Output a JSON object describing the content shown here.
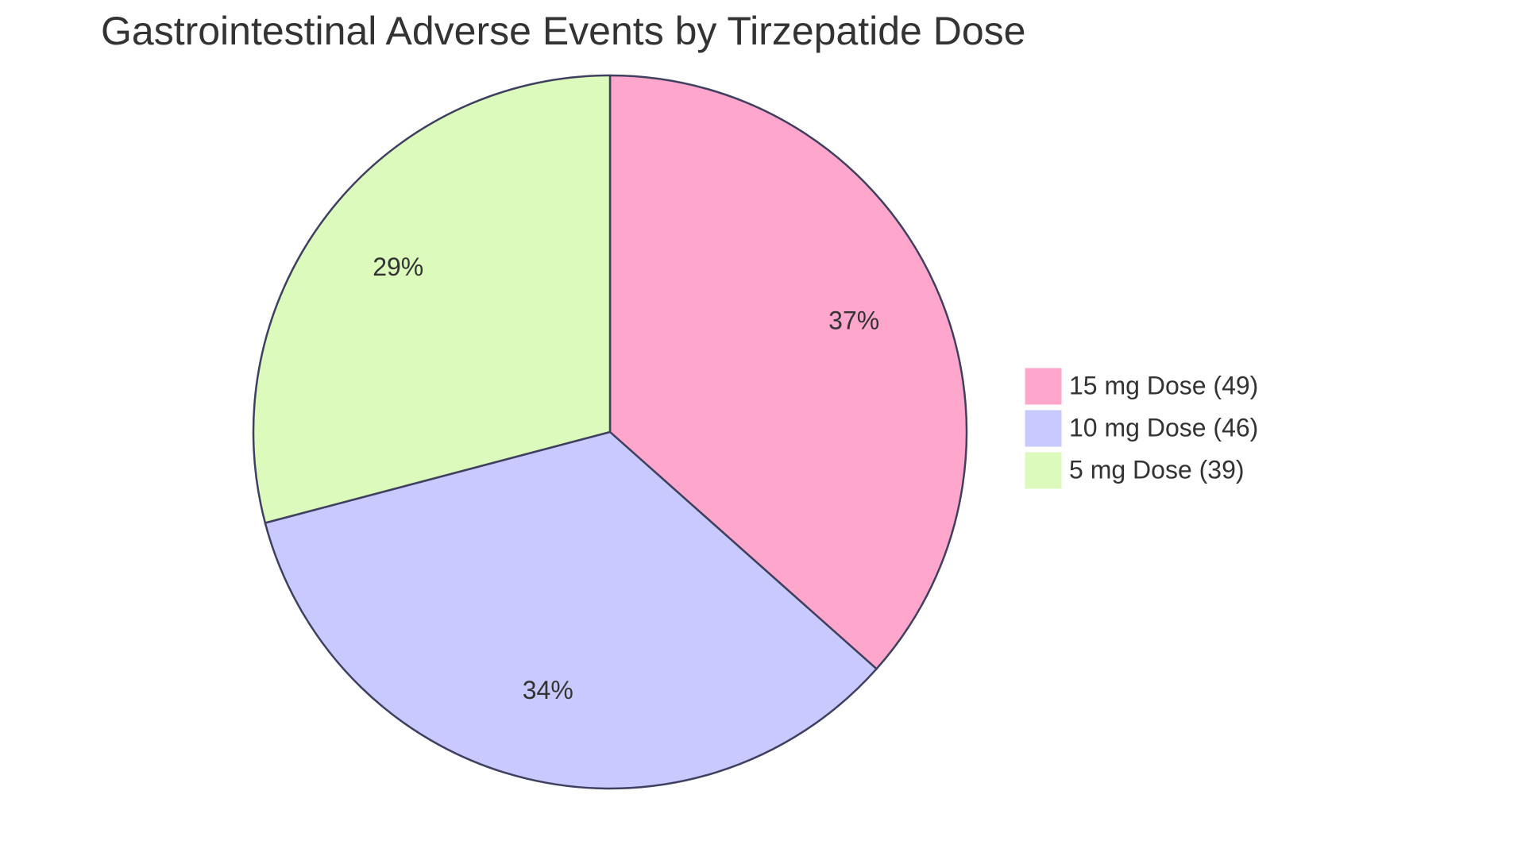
{
  "chart_data": {
    "type": "pie",
    "title": "Gastrointestinal Adverse Events by Tirzepatide Dose",
    "categories": [
      "15 mg Dose (49)",
      "10 mg Dose (46)",
      "5 mg Dose (39)"
    ],
    "values": [
      49,
      46,
      39
    ],
    "value_labels": [
      "37%",
      "34%",
      "29%"
    ],
    "colors": [
      "#ffa6cc",
      "#c8caff",
      "#dbfabc"
    ]
  }
}
